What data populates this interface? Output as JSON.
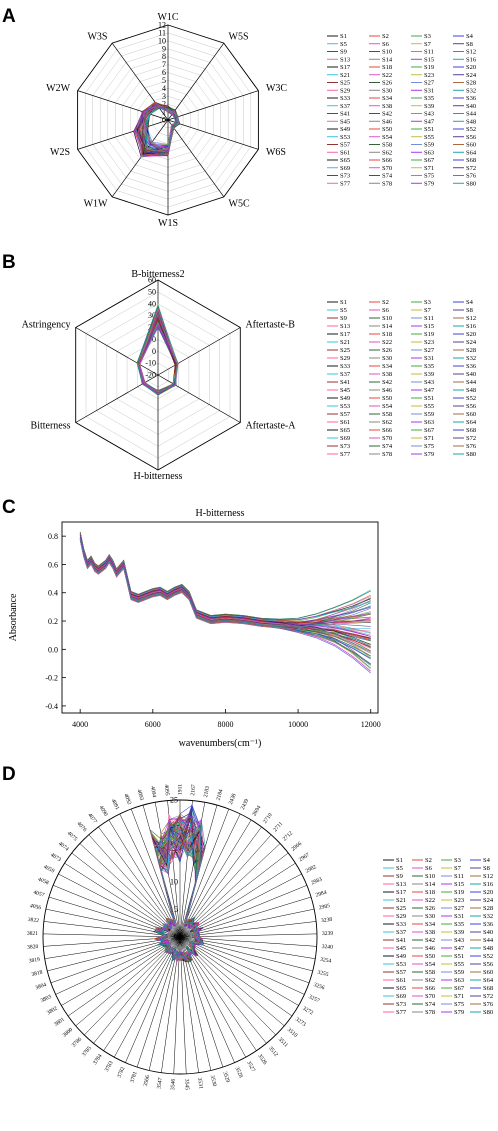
{
  "panels": [
    "A",
    "B",
    "C",
    "D"
  ],
  "colors": [
    "#000000",
    "#e8302a",
    "#2ca02c",
    "#2b2bd6",
    "#1fbde0",
    "#e040c8",
    "#b5b82a",
    "#4a2a8a",
    "#8b1a1a",
    "#205020",
    "#6a7fd0",
    "#a05a2c",
    "#ff4fa0",
    "#7a7a7a",
    "#a020f0",
    "#00a0a0"
  ],
  "legend_names": [
    "S1",
    "S2",
    "S3",
    "S4",
    "S5",
    "S6",
    "S7",
    "S8",
    "S9",
    "S10",
    "S11",
    "S12",
    "S13",
    "S14",
    "S15",
    "S16",
    "S17",
    "S18",
    "S19",
    "S20",
    "S21",
    "S22",
    "S23",
    "S24",
    "S25",
    "S26",
    "S27",
    "S28",
    "S29",
    "S30",
    "S31",
    "S32",
    "S33",
    "S34",
    "S35",
    "S36",
    "S37",
    "S38",
    "S39",
    "S40",
    "S41",
    "S42",
    "S43",
    "S44",
    "S45",
    "S46",
    "S47",
    "S48",
    "S49",
    "S50",
    "S51",
    "S52",
    "S53",
    "S54",
    "S55",
    "S56",
    "S57",
    "S58",
    "S59",
    "S60",
    "S61",
    "S62",
    "S63",
    "S64",
    "S65",
    "S66",
    "S67",
    "S68",
    "S69",
    "S70",
    "S71",
    "S72",
    "S73",
    "S74",
    "S75",
    "S76",
    "S77",
    "S78",
    "S79",
    "S80"
  ],
  "chart_data": [
    {
      "panel": "A",
      "type": "radar",
      "axes": [
        "W1C",
        "W5S",
        "W3C",
        "W6S",
        "W5C",
        "W1S",
        "W1W",
        "W2S",
        "W2W",
        "W3S"
      ],
      "rlim": [
        0,
        12
      ],
      "ticks": [
        0,
        1,
        2,
        3,
        4,
        5,
        6,
        7,
        8,
        9,
        10,
        11,
        12
      ],
      "profile_mean": [
        1.4,
        1.2,
        1.1,
        1.3,
        1.0,
        3.8,
        4.6,
        3.6,
        2.9,
        2.3
      ],
      "profile_spread": [
        0.4,
        0.4,
        0.3,
        0.3,
        0.3,
        0.8,
        1.2,
        1.0,
        0.6,
        0.5
      ],
      "series_count": 80,
      "legend_placement": "right"
    },
    {
      "panel": "B",
      "type": "radar",
      "axes": [
        "B-bitterness2",
        "Aftertaste-B",
        "Aftertaste-A",
        "H-bitterness",
        "Bitterness",
        "Astringency"
      ],
      "rlim": [
        -20,
        60
      ],
      "ticks": [
        -20,
        -10,
        0,
        10,
        20,
        30,
        40,
        50,
        60
      ],
      "profile_mean": [
        30,
        -2,
        -4,
        -5,
        -6,
        -1
      ],
      "profile_spread": [
        10,
        1.5,
        1.5,
        2,
        1.5,
        1.5
      ],
      "series_count": 80,
      "legend_placement": "right"
    },
    {
      "panel": "C",
      "type": "line",
      "xlabel": "wavenumbers(cm⁻¹)",
      "ylabel": "Absorbance",
      "xlim": [
        3500,
        12200
      ],
      "ylim": [
        -0.45,
        0.9
      ],
      "xticks": [
        4000,
        6000,
        8000,
        10000,
        12000
      ],
      "yticks": [
        -0.4,
        -0.2,
        0.0,
        0.2,
        0.4,
        0.6,
        0.8
      ],
      "x": [
        4000,
        4100,
        4200,
        4300,
        4400,
        4500,
        4600,
        4700,
        4800,
        4900,
        5000,
        5100,
        5200,
        5400,
        5600,
        5800,
        6000,
        6200,
        6400,
        6600,
        6800,
        7000,
        7200,
        7600,
        8000,
        8500,
        9000,
        9500,
        10000,
        10500,
        11000,
        11500,
        12000
      ],
      "mean_curve": [
        0.8,
        0.68,
        0.6,
        0.63,
        0.58,
        0.56,
        0.58,
        0.6,
        0.64,
        0.6,
        0.54,
        0.57,
        0.6,
        0.38,
        0.36,
        0.38,
        0.4,
        0.41,
        0.38,
        0.41,
        0.43,
        0.38,
        0.25,
        0.21,
        0.22,
        0.21,
        0.19,
        0.18,
        0.17,
        0.17,
        0.17,
        0.16,
        0.15
      ],
      "series_count": 80
    },
    {
      "panel": "D",
      "type": "radar",
      "axes": [
        "1911",
        "2167",
        "2183",
        "2184",
        "2438",
        "2439",
        "2694",
        "2710",
        "2711",
        "2712",
        "2966",
        "2967",
        "2982",
        "2983",
        "2984",
        "2985",
        "3238",
        "3239",
        "3240",
        "3254",
        "3255",
        "3256",
        "3257",
        "3272",
        "3273",
        "3510",
        "3511",
        "3512",
        "3526",
        "3527",
        "3528",
        "3529",
        "3530",
        "3531",
        "3545",
        "3546",
        "3547",
        "3566",
        "3781",
        "3782",
        "3783",
        "3784",
        "3785",
        "3786",
        "3800",
        "3801",
        "3802",
        "3803",
        "3804",
        "3818",
        "3819",
        "3820",
        "3821",
        "3822",
        "4056",
        "4057",
        "4058",
        "4059",
        "4073",
        "4074",
        "4075",
        "4076",
        "4077",
        "4090",
        "4091",
        "4092",
        "4093",
        "4094",
        "4095"
      ],
      "rlim": [
        0,
        25
      ],
      "ticks": [
        0,
        5,
        10,
        15,
        20,
        25
      ],
      "series_count": 80,
      "legend_placement": "right"
    }
  ]
}
